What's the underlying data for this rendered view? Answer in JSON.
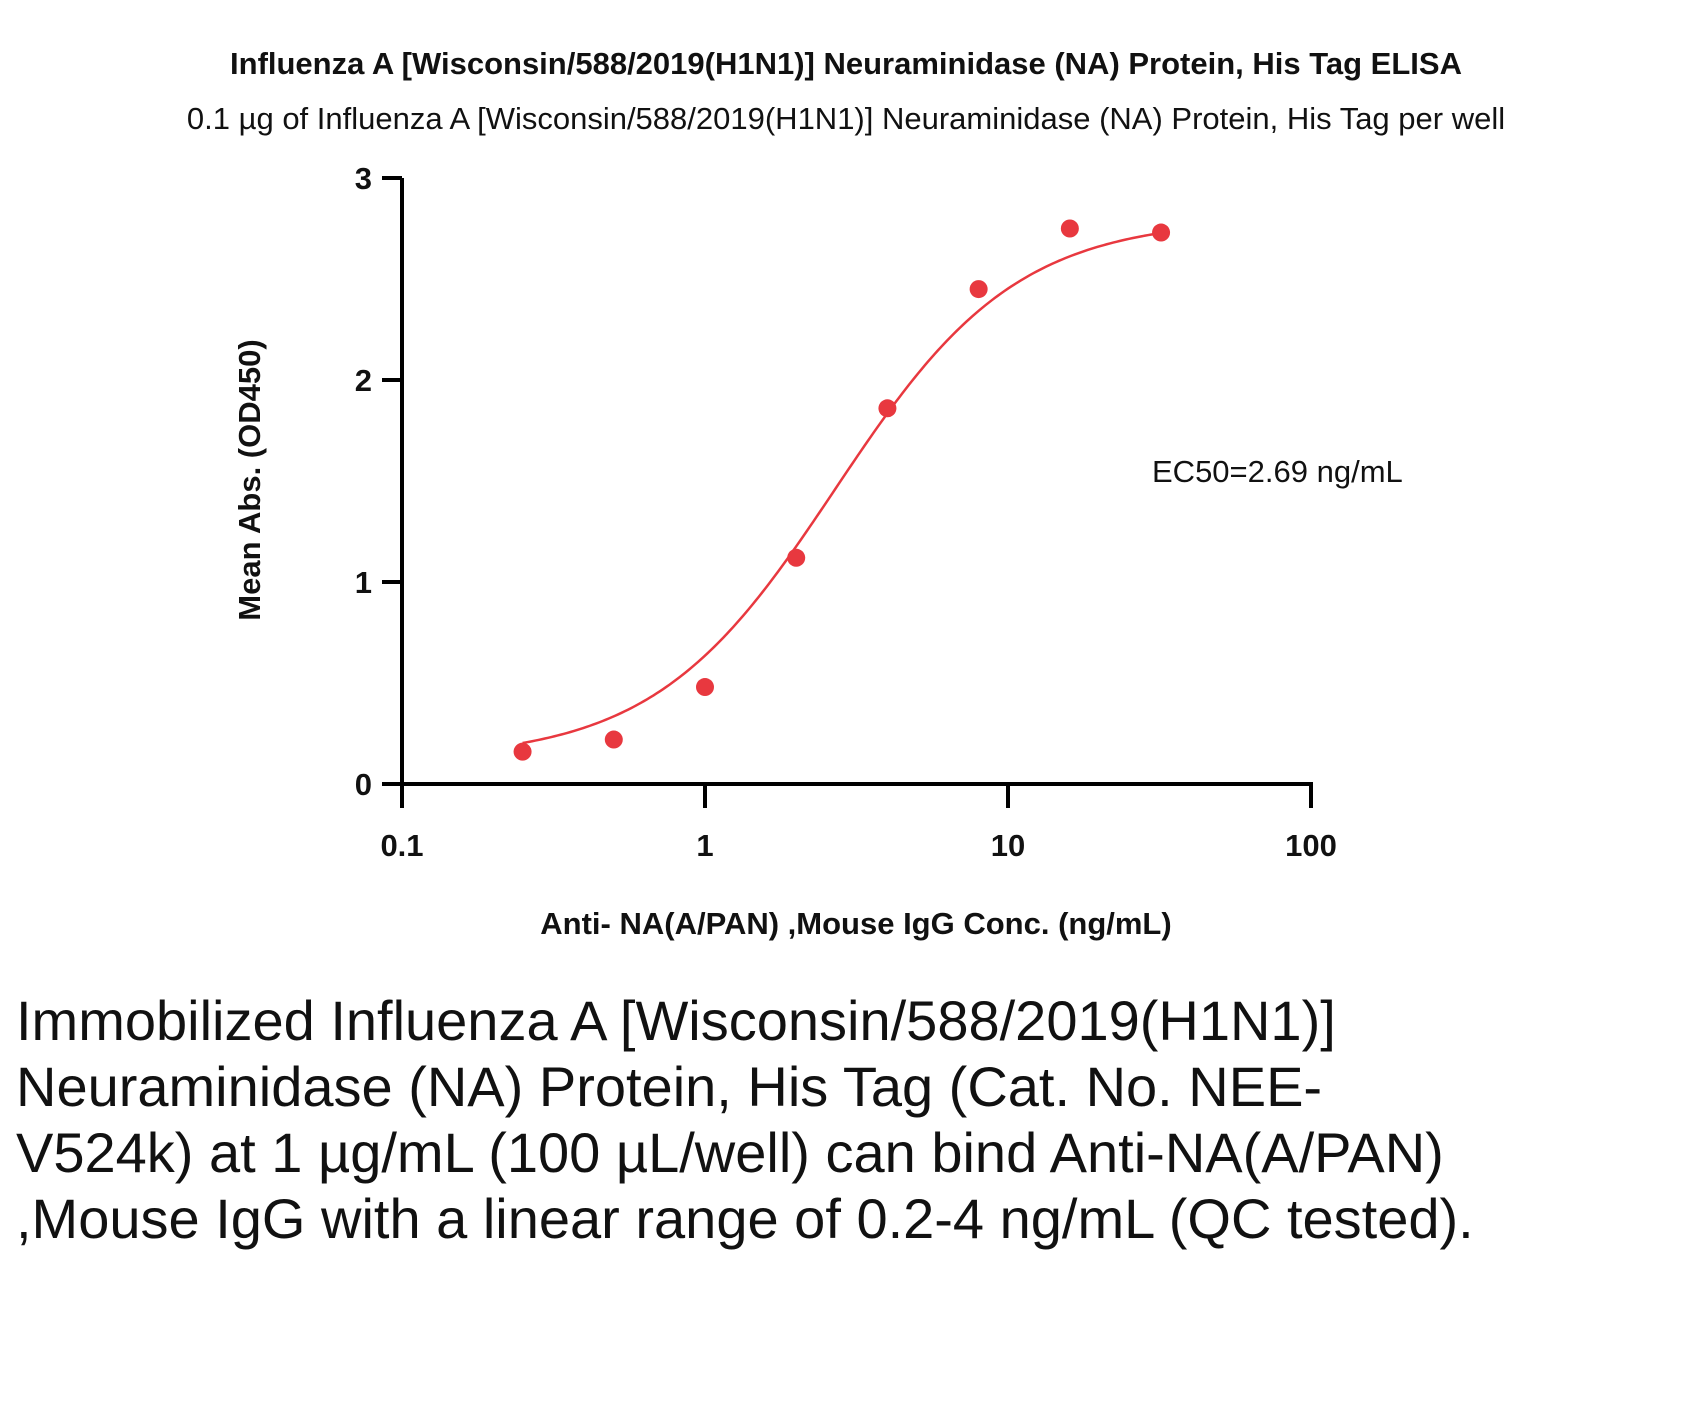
{
  "chart_data": {
    "type": "scatter",
    "title": "Influenza A [Wisconsin/588/2019(H1N1)] Neuraminidase (NA) Protein, His Tag ELISA",
    "subtitle": "0.1 µg of Influenza A [Wisconsin/588/2019(H1N1)] Neuraminidase (NA) Protein, His Tag per well",
    "xlabel": "Anti- NA(A/PAN) ,Mouse IgG Conc. (ng/mL)",
    "ylabel": "Mean Abs. (OD450)",
    "xscale": "log",
    "xlim": [
      0.1,
      100
    ],
    "ylim": [
      0,
      3
    ],
    "xticks": [
      "0.1",
      "1",
      "10",
      "100"
    ],
    "yticks": [
      "0",
      "1",
      "2",
      "3"
    ],
    "grid": false,
    "annotation": "EC50=2.69 ng/mL",
    "color": "#e8383f",
    "fit": "4-parameter logistic curve",
    "series": [
      {
        "x": [
          0.25,
          0.5,
          1,
          2,
          4,
          8,
          16,
          32
        ],
        "y": [
          0.16,
          0.22,
          0.48,
          1.12,
          1.86,
          2.45,
          2.75,
          2.73
        ]
      }
    ]
  },
  "caption": "Immobilized Influenza A [Wisconsin/588/2019(H1N1)] Neuraminidase (NA) Protein, His Tag (Cat. No. NEE-V524k) at 1 µg/mL (100 µL/well) can bind Anti-NA(A/PAN) ,Mouse IgG with a linear range of 0.2-4 ng/mL (QC tested)."
}
